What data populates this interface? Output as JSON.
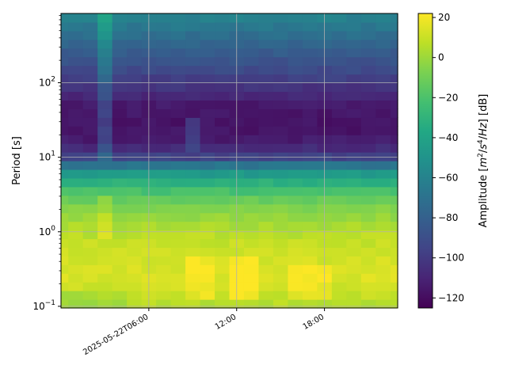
{
  "chart_data": {
    "type": "heatmap",
    "title": "",
    "xlabel": "",
    "ylabel": "Period [s]",
    "y_scale": "log",
    "ylim": [
      0.095,
      850
    ],
    "xlim_hours": [
      0.0,
      23.0
    ],
    "grid": true,
    "x_ticks": [
      {
        "label": "2025-05-22T06:00",
        "hour": 6
      },
      {
        "label": "12:00",
        "hour": 12
      },
      {
        "label": "18:00",
        "hour": 18
      }
    ],
    "y_ticks": [
      {
        "exp": "-1",
        "value": 0.1
      },
      {
        "exp": "0",
        "value": 1
      },
      {
        "exp": "1",
        "value": 10
      },
      {
        "exp": "2",
        "value": 100
      }
    ],
    "colorbar": {
      "label": "Amplitude [m²/s⁴/Hz] [dB]",
      "label_parts": {
        "pre": "Amplitude [",
        "m": "m",
        "sup1": "2",
        "slash1": "/",
        "s": "s",
        "sup2": "4",
        "slash2": "/",
        "hz": "Hz",
        "post": "] [dB]"
      },
      "colormap": "viridis",
      "range": [
        -125,
        22
      ],
      "ticks": [
        20,
        0,
        -20,
        -40,
        -60,
        -80,
        -100,
        -120
      ],
      "tick_labels": [
        "20",
        "0",
        "−20",
        "−40",
        "−60",
        "−80",
        "−100",
        "−120"
      ]
    },
    "time_hours": [
      0.0,
      1.0,
      2.0,
      3.0,
      4.0,
      5.0,
      6.0,
      7.0,
      8.0,
      9.0,
      10.0,
      11.0,
      12.0,
      13.0,
      14.0,
      15.0,
      16.0,
      17.0,
      18.0,
      19.0,
      20.0,
      21.0,
      22.0,
      23.0
    ],
    "period_profile": [
      {
        "period": 0.1,
        "db": 5
      },
      {
        "period": 0.15,
        "db": 10
      },
      {
        "period": 0.25,
        "db": 14
      },
      {
        "period": 0.5,
        "db": 12
      },
      {
        "period": 0.8,
        "db": 8
      },
      {
        "period": 1.0,
        "db": 6
      },
      {
        "period": 2.0,
        "db": -5
      },
      {
        "period": 3.0,
        "db": -15
      },
      {
        "period": 5.0,
        "db": -35
      },
      {
        "period": 7.0,
        "db": -55
      },
      {
        "period": 10.0,
        "db": -95
      },
      {
        "period": 15.0,
        "db": -112
      },
      {
        "period": 25.0,
        "db": -118
      },
      {
        "period": 50.0,
        "db": -115
      },
      {
        "period": 80.0,
        "db": -105
      },
      {
        "period": 150.0,
        "db": -92
      },
      {
        "period": 300.0,
        "db": -80
      },
      {
        "period": 600.0,
        "db": -65
      },
      {
        "period": 850.0,
        "db": -58
      }
    ],
    "anomalies": [
      {
        "hour_start": 2.5,
        "hour_end": 3.4,
        "period_min": 8.0,
        "period_max": 850.0,
        "db_offset": 20
      },
      {
        "hour_start": 2.8,
        "hour_end": 3.2,
        "period_min": 0.8,
        "period_max": 3.0,
        "db_offset": 8
      },
      {
        "hour_start": 9.0,
        "hour_end": 10.8,
        "period_min": 0.12,
        "period_max": 0.45,
        "db_offset": 8
      },
      {
        "hour_start": 11.5,
        "hour_end": 13.8,
        "period_min": 0.12,
        "period_max": 0.5,
        "db_offset": 10
      },
      {
        "hour_start": 15.5,
        "hour_end": 18.5,
        "period_min": 0.12,
        "period_max": 0.4,
        "db_offset": 7
      },
      {
        "hour_start": 8.8,
        "hour_end": 9.7,
        "period_min": 12.0,
        "period_max": 30.0,
        "db_offset": 15
      },
      {
        "hour_start": 0.0,
        "hour_end": 4.0,
        "period_min": 0.095,
        "period_max": 0.15,
        "db_offset": -6
      }
    ]
  }
}
